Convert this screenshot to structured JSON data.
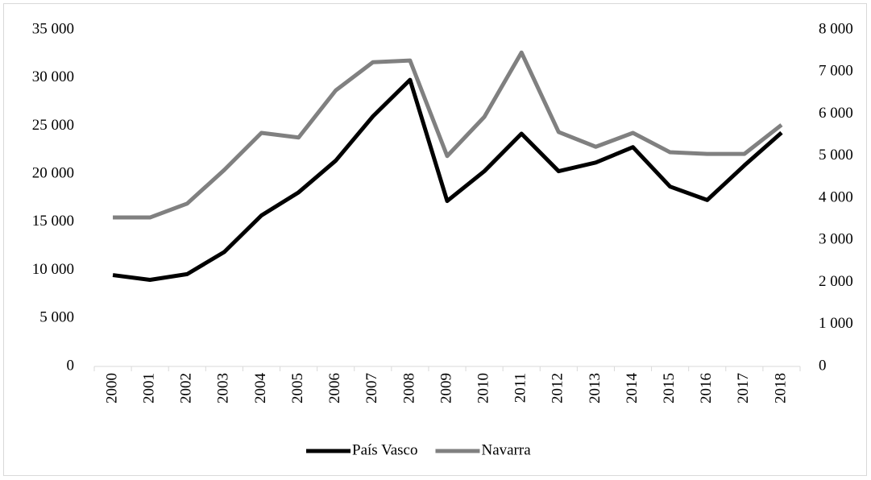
{
  "chart_data": {
    "type": "line",
    "categories": [
      "2000",
      "2001",
      "2002",
      "2003",
      "2004",
      "2005",
      "2006",
      "2007",
      "2008",
      "2009",
      "2010",
      "2011",
      "2012",
      "2013",
      "2014",
      "2015",
      "2016",
      "2017",
      "2018"
    ],
    "series": [
      {
        "name": "País Vasco",
        "color": "#000000",
        "axis": "y",
        "values": [
          9500,
          9000,
          9600,
          11900,
          15700,
          18100,
          21400,
          26000,
          29800,
          17200,
          20300,
          24200,
          20300,
          21200,
          22800,
          18700,
          17300,
          20900,
          24300
        ]
      },
      {
        "name": "Navarra",
        "color": "#808080",
        "axis": "y2",
        "values": [
          3540,
          3540,
          3870,
          4670,
          5550,
          5440,
          6560,
          7230,
          7270,
          5000,
          5930,
          7460,
          5570,
          5220,
          5550,
          5090,
          5050,
          5050,
          5740
        ]
      }
    ],
    "ylim": [
      0,
      35000
    ],
    "yticks": [
      0,
      {
        "value": 5000,
        "label": "5 000"
      },
      {
        "value": 10000,
        "label": "10 000"
      },
      {
        "value": 15000,
        "label": "15 000"
      },
      {
        "value": 20000,
        "label": "20 000"
      },
      {
        "value": 25000,
        "label": "25 000"
      },
      {
        "value": 30000,
        "label": "30 000"
      },
      {
        "value": 35000,
        "label": "35 000"
      }
    ],
    "y2lim": [
      0,
      8000
    ],
    "y2ticks": [
      0,
      {
        "value": 1000,
        "label": "1 000"
      },
      {
        "value": 2000,
        "label": "2 000"
      },
      {
        "value": 3000,
        "label": "3 000"
      },
      {
        "value": 4000,
        "label": "4 000"
      },
      {
        "value": 5000,
        "label": "5 000"
      },
      {
        "value": 6000,
        "label": "6 000"
      },
      {
        "value": 7000,
        "label": "7 000"
      },
      {
        "value": 8000,
        "label": "8 000"
      }
    ],
    "legend": "bottom",
    "grid": false
  }
}
